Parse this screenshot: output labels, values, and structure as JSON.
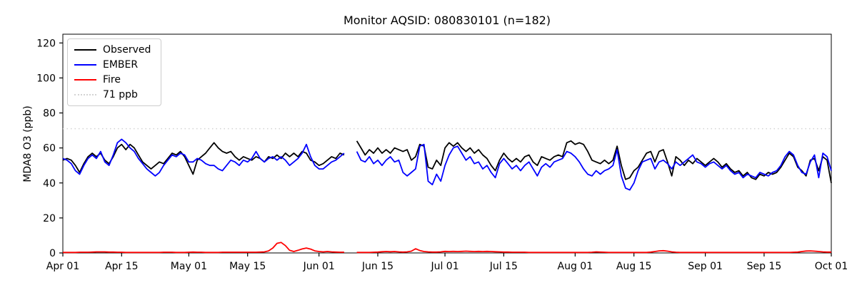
{
  "header": {
    "title": "Monitor AQSID: 080830101 (n=182)"
  },
  "chart_data": {
    "type": "line",
    "title": "Monitor AQSID: 080830101 (n=182)",
    "xlabel": "",
    "ylabel": "MDA8 O3 (ppb)",
    "ylim": [
      0,
      125
    ],
    "yticks": [
      0,
      20,
      40,
      60,
      80,
      100,
      120
    ],
    "x_total_days": 183,
    "xtick_days": [
      0,
      14,
      30,
      44,
      61,
      75,
      91,
      105,
      122,
      136,
      153,
      167,
      183
    ],
    "xtick_labels": [
      "Apr 01",
      "Apr 15",
      "May 01",
      "May 15",
      "Jun 01",
      "Jun 15",
      "Jul 01",
      "Jul 15",
      "Aug 01",
      "Aug 15",
      "Sep 01",
      "Sep 15",
      "Oct 01"
    ],
    "grid": false,
    "legend_position": "upper left",
    "threshold": {
      "label": "71 ppb",
      "value": 71,
      "color": "#d3d3d3",
      "linestyle": "dotted"
    },
    "legend": [
      {
        "label": "Observed",
        "color": "#000000",
        "linestyle": "solid"
      },
      {
        "label": "EMBER",
        "color": "#0000ff",
        "linestyle": "solid"
      },
      {
        "label": "Fire",
        "color": "#ff0000",
        "linestyle": "solid"
      },
      {
        "label": "71 ppb",
        "color": "#d3d3d3",
        "linestyle": "dotted"
      }
    ],
    "series": [
      {
        "name": "Observed",
        "color": "#000000",
        "values": [
          53,
          54,
          53,
          50,
          46,
          51,
          55,
          57,
          55,
          57,
          53,
          51,
          55,
          60,
          62,
          59,
          62,
          60,
          56,
          52,
          50,
          48,
          50,
          52,
          51,
          54,
          57,
          56,
          58,
          55,
          50,
          45,
          53,
          55,
          57,
          60,
          63,
          60,
          58,
          57,
          58,
          55,
          53,
          55,
          54,
          53,
          55,
          54,
          52,
          55,
          54,
          56,
          54,
          57,
          55,
          57,
          55,
          58,
          57,
          53,
          52,
          50,
          51,
          53,
          55,
          54,
          57,
          56,
          null,
          null,
          64,
          60,
          56,
          59,
          57,
          60,
          57,
          59,
          57,
          60,
          59,
          58,
          59,
          53,
          55,
          62,
          61,
          49,
          48,
          53,
          50,
          60,
          63,
          61,
          63,
          60,
          58,
          60,
          57,
          59,
          56,
          54,
          50,
          47,
          53,
          57,
          54,
          52,
          54,
          52,
          55,
          56,
          52,
          50,
          55,
          54,
          53,
          55,
          56,
          55,
          63,
          64,
          62,
          63,
          62,
          58,
          53,
          52,
          51,
          53,
          51,
          53,
          61,
          50,
          42,
          43,
          47,
          49,
          53,
          57,
          58,
          52,
          58,
          59,
          52,
          44,
          55,
          53,
          50,
          53,
          51,
          54,
          52,
          50,
          52,
          54,
          52,
          49,
          51,
          48,
          46,
          47,
          44,
          46,
          43,
          42,
          45,
          44,
          46,
          45,
          46,
          49,
          53,
          57,
          55,
          49,
          47,
          44,
          53,
          54,
          47,
          55,
          53,
          40
        ]
      },
      {
        "name": "EMBER",
        "color": "#0000ff",
        "values": [
          54,
          53,
          51,
          47,
          45,
          50,
          54,
          56,
          54,
          58,
          52,
          50,
          56,
          63,
          65,
          63,
          60,
          58,
          54,
          51,
          48,
          46,
          44,
          46,
          50,
          53,
          56,
          55,
          57,
          56,
          52,
          52,
          54,
          53,
          51,
          50,
          50,
          48,
          47,
          50,
          53,
          52,
          50,
          53,
          52,
          54,
          58,
          54,
          52,
          54,
          55,
          53,
          55,
          53,
          50,
          52,
          54,
          57,
          62,
          55,
          50,
          48,
          48,
          50,
          52,
          53,
          55,
          57,
          null,
          null,
          58,
          53,
          52,
          55,
          51,
          53,
          50,
          53,
          55,
          52,
          53,
          46,
          44,
          46,
          48,
          61,
          62,
          41,
          39,
          45,
          41,
          50,
          56,
          60,
          61,
          57,
          53,
          55,
          51,
          52,
          48,
          50,
          46,
          43,
          51,
          54,
          51,
          48,
          50,
          47,
          50,
          52,
          48,
          44,
          49,
          51,
          49,
          52,
          53,
          54,
          58,
          57,
          55,
          52,
          48,
          45,
          44,
          47,
          45,
          47,
          48,
          50,
          59,
          44,
          37,
          36,
          40,
          47,
          52,
          53,
          54,
          48,
          52,
          53,
          51,
          48,
          52,
          50,
          52,
          54,
          56,
          52,
          51,
          49,
          51,
          52,
          50,
          48,
          50,
          47,
          45,
          46,
          43,
          45,
          44,
          43,
          46,
          45,
          44,
          46,
          47,
          50,
          55,
          58,
          56,
          50,
          46,
          45,
          52,
          56,
          43,
          57,
          55,
          47
        ]
      },
      {
        "name": "Fire",
        "color": "#ff0000",
        "values": [
          0.3,
          0.3,
          0.3,
          0.3,
          0.4,
          0.4,
          0.4,
          0.5,
          0.6,
          0.6,
          0.6,
          0.5,
          0.5,
          0.4,
          0.4,
          0.3,
          0.3,
          0.3,
          0.3,
          0.3,
          0.3,
          0.3,
          0.3,
          0.3,
          0.4,
          0.4,
          0.4,
          0.3,
          0.3,
          0.3,
          0.4,
          0.5,
          0.4,
          0.4,
          0.3,
          0.3,
          0.3,
          0.3,
          0.4,
          0.4,
          0.4,
          0.4,
          0.4,
          0.4,
          0.4,
          0.4,
          0.4,
          0.5,
          0.6,
          1.2,
          2.8,
          5.5,
          6.0,
          4.2,
          1.5,
          0.8,
          1.5,
          2.3,
          2.8,
          2.2,
          1.2,
          0.8,
          0.6,
          0.8,
          0.6,
          0.5,
          0.4,
          0.4,
          null,
          null,
          0.3,
          0.3,
          0.3,
          0.3,
          0.4,
          0.5,
          0.7,
          0.8,
          0.7,
          0.8,
          0.6,
          0.5,
          0.6,
          1.0,
          2.4,
          1.4,
          0.8,
          0.6,
          0.5,
          0.5,
          0.6,
          0.9,
          0.8,
          0.9,
          0.8,
          0.9,
          1.0,
          0.9,
          0.8,
          0.9,
          0.8,
          0.9,
          0.8,
          0.7,
          0.6,
          0.5,
          0.5,
          0.4,
          0.4,
          0.4,
          0.4,
          0.3,
          0.3,
          0.3,
          0.3,
          0.3,
          0.3,
          0.3,
          0.3,
          0.3,
          0.3,
          0.3,
          0.3,
          0.3,
          0.3,
          0.3,
          0.4,
          0.6,
          0.5,
          0.4,
          0.3,
          0.3,
          0.3,
          0.3,
          0.3,
          0.3,
          0.3,
          0.3,
          0.3,
          0.3,
          0.5,
          0.8,
          1.2,
          1.3,
          1.0,
          0.6,
          0.4,
          0.3,
          0.3,
          0.3,
          0.3,
          0.3,
          0.3,
          0.3,
          0.3,
          0.3,
          0.3,
          0.3,
          0.3,
          0.3,
          0.3,
          0.3,
          0.3,
          0.3,
          0.3,
          0.3,
          0.3,
          0.3,
          0.3,
          0.3,
          0.3,
          0.3,
          0.3,
          0.3,
          0.4,
          0.5,
          0.8,
          1.1,
          1.2,
          1.0,
          0.8,
          0.6,
          0.5,
          0.5
        ]
      }
    ]
  }
}
